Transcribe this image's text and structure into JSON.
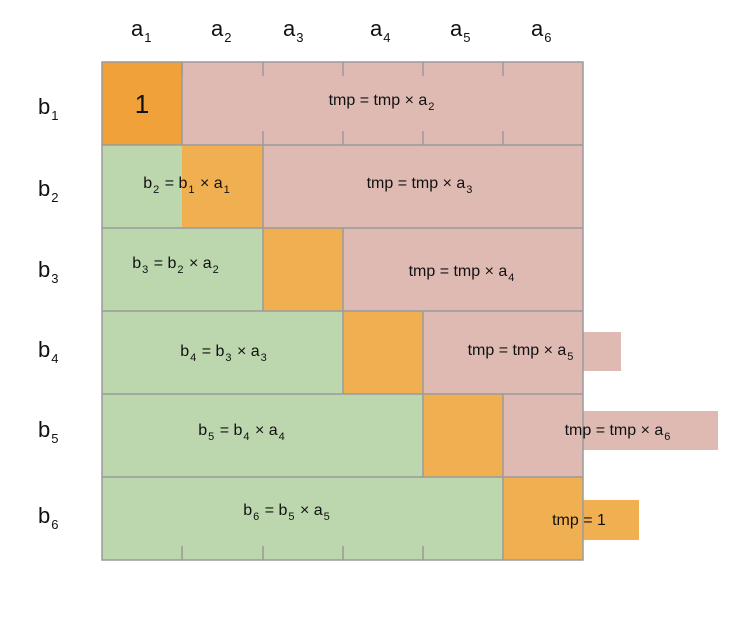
{
  "columns": [
    {
      "name": "a",
      "sub": "1"
    },
    {
      "name": "a",
      "sub": "2"
    },
    {
      "name": "a",
      "sub": "3"
    },
    {
      "name": "a",
      "sub": "4"
    },
    {
      "name": "a",
      "sub": "5"
    },
    {
      "name": "a",
      "sub": "6"
    }
  ],
  "rows": [
    {
      "name": "b",
      "sub": "1"
    },
    {
      "name": "b",
      "sub": "2"
    },
    {
      "name": "b",
      "sub": "3"
    },
    {
      "name": "b",
      "sub": "4"
    },
    {
      "name": "b",
      "sub": "5"
    },
    {
      "name": "b",
      "sub": "6"
    }
  ],
  "initial_value": "1",
  "left_labels": [
    {
      "lhs": "b",
      "lhs_sub": "2",
      "mid": " = b",
      "mid_sub": "1",
      "op": " × a",
      "op_sub": "1"
    },
    {
      "lhs": "b",
      "lhs_sub": "3",
      "mid": " = b",
      "mid_sub": "2",
      "op": " × a",
      "op_sub": "2"
    },
    {
      "lhs": "b",
      "lhs_sub": "4",
      "mid": " = b",
      "mid_sub": "3",
      "op": " × a",
      "op_sub": "3"
    },
    {
      "lhs": "b",
      "lhs_sub": "5",
      "mid": " = b",
      "mid_sub": "4",
      "op": " × a",
      "op_sub": "4"
    },
    {
      "lhs": "b",
      "lhs_sub": "6",
      "mid": " = b",
      "mid_sub": "5",
      "op": " × a",
      "op_sub": "5"
    }
  ],
  "right_labels": [
    {
      "text": "tmp = tmp × a",
      "sub": "2"
    },
    {
      "text": "tmp = tmp × a",
      "sub": "3"
    },
    {
      "text": "tmp = tmp × a",
      "sub": "4"
    },
    {
      "text": "tmp = tmp × a",
      "sub": "5"
    },
    {
      "text": "tmp = tmp × a",
      "sub": "6"
    }
  ],
  "final_label": "tmp = 1",
  "colors": {
    "green": "#bcd7ae",
    "pink": "#dfbab3",
    "orange": "#f0b052",
    "deep_orange": "#f0a139",
    "grid": "#9a9a9a"
  }
}
